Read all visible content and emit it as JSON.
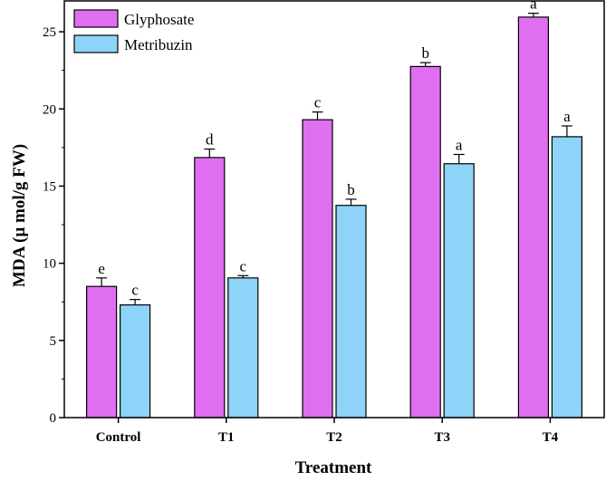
{
  "chart_data": {
    "type": "bar",
    "title": "",
    "xlabel": "Treatment",
    "ylabel": "MDA (µ mol/g FW)",
    "categories": [
      "Control",
      "T1",
      "T2",
      "T3",
      "T4"
    ],
    "ylim": [
      0,
      27
    ],
    "yticks": [
      0,
      5,
      10,
      15,
      20,
      25
    ],
    "legend_position": "top-left",
    "series": [
      {
        "name": "Glyphosate",
        "color": "#df6ff0",
        "values": [
          8.5,
          16.85,
          19.3,
          22.75,
          25.95
        ],
        "errors": [
          0.55,
          0.55,
          0.5,
          0.25,
          0.25
        ],
        "significance": [
          "e",
          "d",
          "c",
          "b",
          "a"
        ]
      },
      {
        "name": "Metribuzin",
        "color": "#8ed3f8",
        "values": [
          7.3,
          9.05,
          13.75,
          16.45,
          18.2
        ],
        "errors": [
          0.35,
          0.15,
          0.4,
          0.6,
          0.7
        ],
        "significance": [
          "c",
          "c",
          "b",
          "a",
          "a"
        ]
      }
    ]
  }
}
